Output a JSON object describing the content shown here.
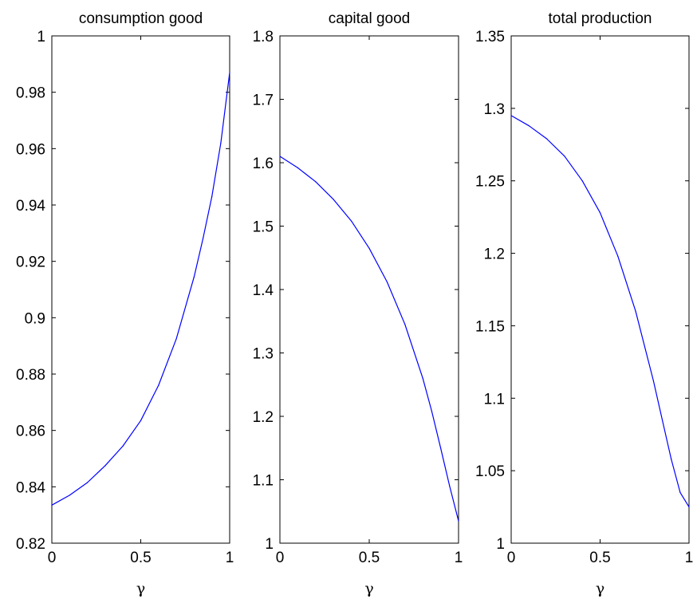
{
  "chart_data": [
    {
      "type": "line",
      "title": "consumption good",
      "xlabel": "γ",
      "ylabel": "",
      "xlim": [
        0,
        1
      ],
      "ylim": [
        0.82,
        1
      ],
      "xticks": [
        "0",
        "0.5",
        "1"
      ],
      "yticks": [
        "0.82",
        "0.84",
        "0.86",
        "0.88",
        "0.9",
        "0.92",
        "0.94",
        "0.96",
        "0.98",
        "1"
      ],
      "grid": false,
      "line_color": "#0000ff",
      "series": [
        {
          "x": [
            0,
            0.1,
            0.2,
            0.3,
            0.4,
            0.5,
            0.6,
            0.7,
            0.8,
            0.85,
            0.9,
            0.95,
            1.0
          ],
          "y": [
            0.8335,
            0.837,
            0.8415,
            0.8475,
            0.8545,
            0.8635,
            0.876,
            0.8925,
            0.9145,
            0.928,
            0.943,
            0.962,
            0.987
          ]
        }
      ]
    },
    {
      "type": "line",
      "title": "capital good",
      "xlabel": "γ",
      "ylabel": "",
      "xlim": [
        0,
        1
      ],
      "ylim": [
        1,
        1.8
      ],
      "xticks": [
        "0",
        "0.5",
        "1"
      ],
      "yticks": [
        "1",
        "1.1",
        "1.2",
        "1.3",
        "1.4",
        "1.5",
        "1.6",
        "1.7",
        "1.8"
      ],
      "grid": false,
      "line_color": "#0000ff",
      "series": [
        {
          "x": [
            0,
            0.1,
            0.2,
            0.3,
            0.4,
            0.5,
            0.6,
            0.7,
            0.8,
            0.85,
            0.9,
            0.95,
            1.0
          ],
          "y": [
            1.61,
            1.592,
            1.57,
            1.542,
            1.508,
            1.465,
            1.412,
            1.345,
            1.26,
            1.208,
            1.15,
            1.09,
            1.035
          ]
        }
      ]
    },
    {
      "type": "line",
      "title": "total production",
      "xlabel": "γ",
      "ylabel": "",
      "xlim": [
        0,
        1
      ],
      "ylim": [
        1,
        1.35
      ],
      "xticks": [
        "0",
        "0.5",
        "1"
      ],
      "yticks": [
        "1",
        "1.05",
        "1.1",
        "1.15",
        "1.2",
        "1.25",
        "1.3",
        "1.35"
      ],
      "grid": false,
      "line_color": "#0000ff",
      "series": [
        {
          "x": [
            0,
            0.1,
            0.2,
            0.3,
            0.4,
            0.5,
            0.6,
            0.7,
            0.8,
            0.85,
            0.9,
            0.95,
            1.0
          ],
          "y": [
            1.295,
            1.288,
            1.279,
            1.267,
            1.25,
            1.228,
            1.198,
            1.16,
            1.112,
            1.085,
            1.058,
            1.035,
            1.025
          ]
        }
      ]
    }
  ]
}
